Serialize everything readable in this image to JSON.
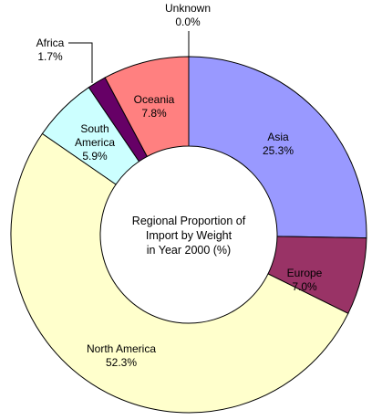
{
  "chart_data": {
    "type": "pie",
    "donut": true,
    "center_title": [
      "Regional Proportion of",
      "Import by Weight",
      "in Year 2000 (%)"
    ],
    "slices": [
      {
        "name": "Asia",
        "value": 25.3,
        "label": "25.3%",
        "color": "#9999ff"
      },
      {
        "name": "Europe",
        "value": 7.0,
        "label": "7.0%",
        "color": "#993366"
      },
      {
        "name": "North America",
        "value": 52.3,
        "label": "52.3%",
        "color": "#ffffcc"
      },
      {
        "name": "South America",
        "value": 5.9,
        "label": "5.9%",
        "color": "#ccffff"
      },
      {
        "name": "Africa",
        "value": 1.7,
        "label": "1.7%",
        "color": "#660066"
      },
      {
        "name": "Oceania",
        "value": 7.8,
        "label": "7.8%",
        "color": "#ff8080"
      },
      {
        "name": "Unknown",
        "value": 0.0,
        "label": "0.0%",
        "color": "#c0c0c0"
      }
    ]
  }
}
